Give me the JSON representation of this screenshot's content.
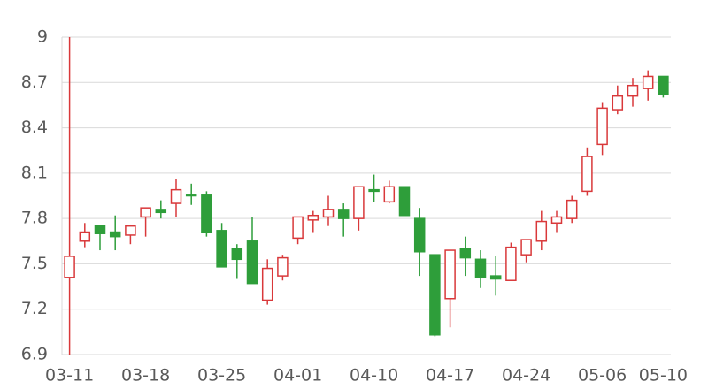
{
  "chart_data": {
    "type": "candlestick",
    "categories": [
      "03-11",
      null,
      null,
      null,
      null,
      "03-18",
      null,
      null,
      null,
      null,
      "03-25",
      null,
      null,
      null,
      null,
      "04-01",
      null,
      null,
      null,
      null,
      "04-10",
      null,
      null,
      null,
      null,
      "04-17",
      null,
      null,
      null,
      null,
      "04-24",
      null,
      null,
      null,
      null,
      "05-06",
      null,
      null,
      null,
      "05-10"
    ],
    "open": [
      7.41,
      7.65,
      7.75,
      7.71,
      7.69,
      7.81,
      7.86,
      7.9,
      7.96,
      7.96,
      7.72,
      7.6,
      7.65,
      7.26,
      7.42,
      7.67,
      7.79,
      7.81,
      7.86,
      7.8,
      7.99,
      7.91,
      8.01,
      7.8,
      7.56,
      7.27,
      7.6,
      7.53,
      7.42,
      7.39,
      7.56,
      7.65,
      7.77,
      7.8,
      7.98,
      8.29,
      8.52,
      8.61,
      8.66,
      8.74
    ],
    "high": [
      9.0,
      7.77,
      7.75,
      7.82,
      7.76,
      7.87,
      7.92,
      8.06,
      8.03,
      7.98,
      7.77,
      7.63,
      7.81,
      7.53,
      7.56,
      7.81,
      7.85,
      7.95,
      7.9,
      8.01,
      8.09,
      8.05,
      8.01,
      7.87,
      7.56,
      7.59,
      7.68,
      7.59,
      7.55,
      7.64,
      7.66,
      7.85,
      7.85,
      7.95,
      8.27,
      8.57,
      8.68,
      8.73,
      8.78,
      8.74
    ],
    "low": [
      6.9,
      7.61,
      7.59,
      7.59,
      7.63,
      7.68,
      7.8,
      7.81,
      7.89,
      7.68,
      7.48,
      7.4,
      7.37,
      7.23,
      7.39,
      7.63,
      7.71,
      7.75,
      7.68,
      7.72,
      7.91,
      7.9,
      7.82,
      7.42,
      7.02,
      7.08,
      7.42,
      7.34,
      7.29,
      7.39,
      7.51,
      7.59,
      7.71,
      7.77,
      7.95,
      8.22,
      8.49,
      8.54,
      8.58,
      8.6
    ],
    "close": [
      7.55,
      7.71,
      7.7,
      7.68,
      7.75,
      7.87,
      7.84,
      7.99,
      7.95,
      7.71,
      7.48,
      7.53,
      7.37,
      7.47,
      7.54,
      7.81,
      7.82,
      7.86,
      7.8,
      8.01,
      7.98,
      8.01,
      7.82,
      7.58,
      7.03,
      7.59,
      7.54,
      7.41,
      7.4,
      7.61,
      7.66,
      7.78,
      7.81,
      7.92,
      8.21,
      8.53,
      8.61,
      8.68,
      8.74,
      8.62
    ],
    "up_color": "#d9383a",
    "down_color": "#2e9e3a",
    "ylim": [
      6.9,
      9
    ],
    "yticks": [
      6.9,
      7.2,
      7.5,
      7.8,
      8.1,
      8.4,
      8.7,
      9
    ],
    "grid": true
  }
}
